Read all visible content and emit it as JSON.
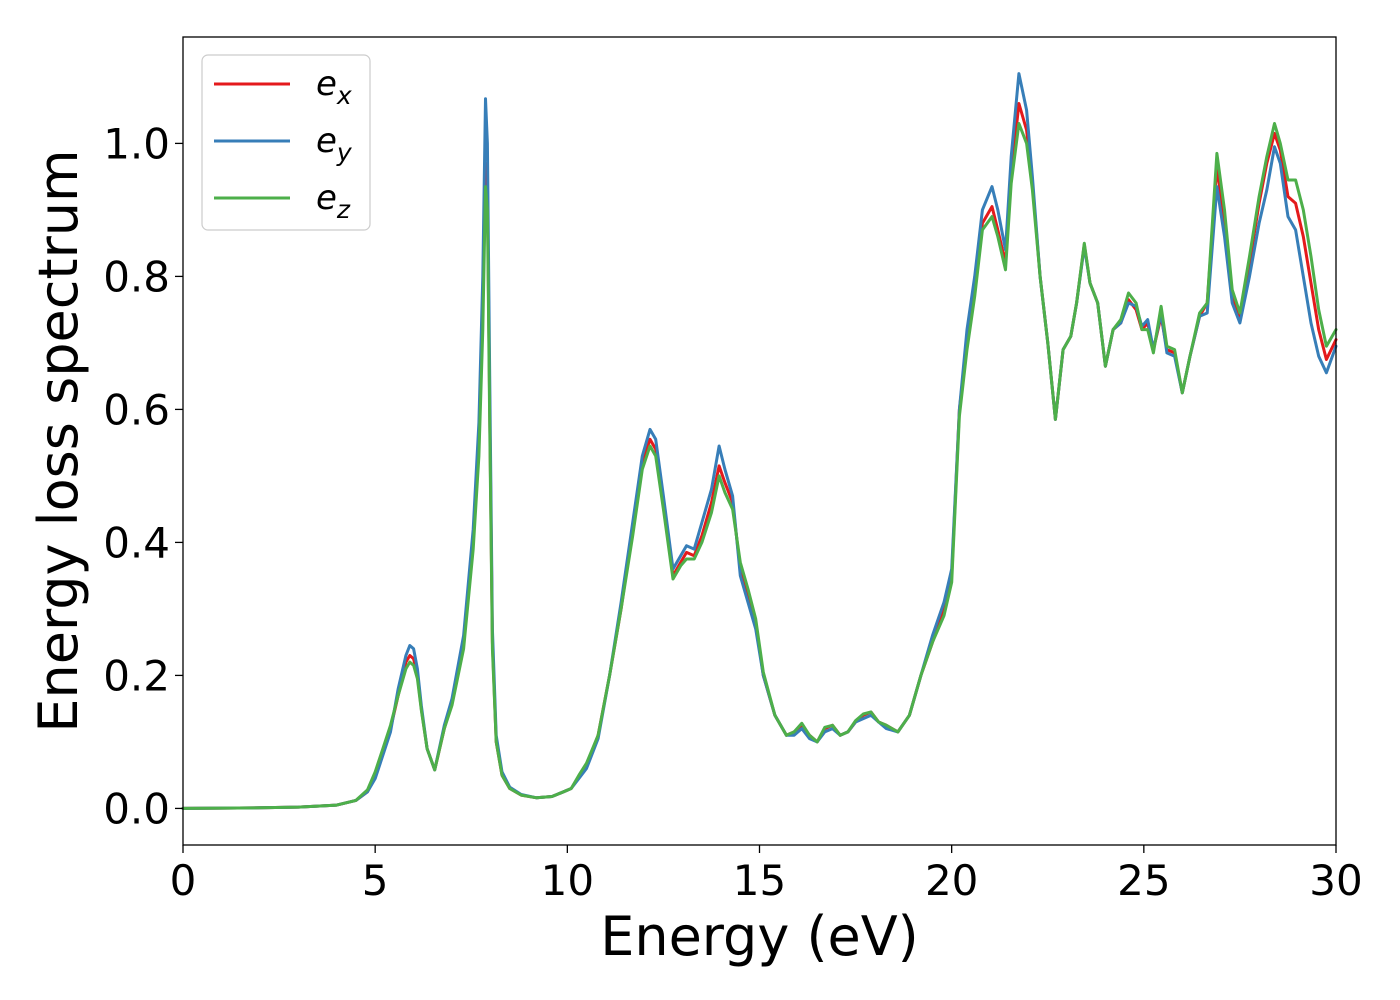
{
  "chart_data": {
    "type": "line",
    "title": "",
    "xlabel": "Energy (eV)",
    "ylabel": "Energy loss spectrum",
    "xlim": [
      0,
      30
    ],
    "ylim": [
      -0.055,
      1.16
    ],
    "xticks": [
      0,
      5,
      10,
      15,
      20,
      25,
      30
    ],
    "xtick_labels": [
      "0",
      "5",
      "10",
      "15",
      "20",
      "25",
      "30"
    ],
    "yticks": [
      0.0,
      0.2,
      0.4,
      0.6,
      0.8,
      1.0
    ],
    "ytick_labels": [
      "0.0",
      "0.2",
      "0.4",
      "0.6",
      "0.8",
      "1.0"
    ],
    "grid": false,
    "legend_position": "top-left",
    "x": [
      0,
      1,
      2,
      3,
      4,
      4.5,
      4.8,
      5,
      5.2,
      5.4,
      5.6,
      5.8,
      5.9,
      6.0,
      6.1,
      6.2,
      6.35,
      6.55,
      6.8,
      7.0,
      7.3,
      7.55,
      7.7,
      7.8,
      7.87,
      7.92,
      7.98,
      8.05,
      8.15,
      8.3,
      8.5,
      8.8,
      9.2,
      9.6,
      9.9,
      10.1,
      10.3,
      10.5,
      10.8,
      11.1,
      11.4,
      11.7,
      11.95,
      12.15,
      12.3,
      12.5,
      12.75,
      12.95,
      13.1,
      13.3,
      13.5,
      13.75,
      13.95,
      14.1,
      14.3,
      14.5,
      14.7,
      14.9,
      15.1,
      15.4,
      15.7,
      15.9,
      16.1,
      16.3,
      16.5,
      16.7,
      16.9,
      17.1,
      17.3,
      17.5,
      17.7,
      17.9,
      18.1,
      18.3,
      18.6,
      18.9,
      19.2,
      19.5,
      19.8,
      20.0,
      20.2,
      20.4,
      20.6,
      20.8,
      21.05,
      21.2,
      21.4,
      21.55,
      21.75,
      21.95,
      22.1,
      22.3,
      22.5,
      22.7,
      22.9,
      23.1,
      23.25,
      23.45,
      23.6,
      23.8,
      24.0,
      24.2,
      24.4,
      24.6,
      24.8,
      24.95,
      25.1,
      25.25,
      25.45,
      25.6,
      25.8,
      26.0,
      26.2,
      26.45,
      26.65,
      26.9,
      27.1,
      27.3,
      27.5,
      27.75,
      28.0,
      28.2,
      28.4,
      28.55,
      28.75,
      28.95,
      29.15,
      29.35,
      29.55,
      29.75,
      30.0
    ],
    "series": [
      {
        "name": "e_x",
        "label_base": "e",
        "label_sub": "x",
        "color": "#e41a1c",
        "values": [
          0,
          0.0005,
          0.001,
          0.002,
          0.005,
          0.012,
          0.025,
          0.05,
          0.085,
          0.12,
          0.17,
          0.22,
          0.23,
          0.225,
          0.2,
          0.15,
          0.09,
          0.058,
          0.12,
          0.16,
          0.25,
          0.4,
          0.55,
          0.75,
          0.97,
          0.93,
          0.6,
          0.25,
          0.1,
          0.05,
          0.03,
          0.02,
          0.016,
          0.018,
          0.025,
          0.03,
          0.048,
          0.065,
          0.11,
          0.2,
          0.3,
          0.42,
          0.52,
          0.555,
          0.54,
          0.46,
          0.35,
          0.37,
          0.385,
          0.38,
          0.41,
          0.46,
          0.515,
          0.49,
          0.46,
          0.36,
          0.32,
          0.28,
          0.2,
          0.14,
          0.11,
          0.115,
          0.125,
          0.11,
          0.1,
          0.12,
          0.125,
          0.11,
          0.115,
          0.13,
          0.14,
          0.145,
          0.13,
          0.125,
          0.115,
          0.14,
          0.2,
          0.25,
          0.3,
          0.35,
          0.6,
          0.7,
          0.78,
          0.88,
          0.905,
          0.87,
          0.82,
          0.95,
          1.06,
          1.02,
          0.94,
          0.8,
          0.7,
          0.585,
          0.69,
          0.71,
          0.76,
          0.848,
          0.79,
          0.76,
          0.665,
          0.72,
          0.73,
          0.765,
          0.75,
          0.72,
          0.73,
          0.69,
          0.74,
          0.69,
          0.685,
          0.625,
          0.68,
          0.74,
          0.76,
          0.965,
          0.88,
          0.77,
          0.735,
          0.82,
          0.91,
          0.97,
          1.015,
          0.99,
          0.92,
          0.91,
          0.86,
          0.79,
          0.72,
          0.675,
          0.705
        ]
      },
      {
        "name": "e_y",
        "label_base": "e",
        "label_sub": "y",
        "color": "#377eb8",
        "values": [
          0,
          0.0005,
          0.001,
          0.002,
          0.005,
          0.012,
          0.025,
          0.045,
          0.08,
          0.115,
          0.18,
          0.23,
          0.245,
          0.24,
          0.21,
          0.155,
          0.09,
          0.058,
          0.125,
          0.165,
          0.26,
          0.42,
          0.58,
          0.8,
          1.067,
          1.0,
          0.65,
          0.27,
          0.11,
          0.055,
          0.032,
          0.021,
          0.016,
          0.018,
          0.025,
          0.03,
          0.045,
          0.06,
          0.105,
          0.2,
          0.31,
          0.43,
          0.53,
          0.57,
          0.555,
          0.47,
          0.36,
          0.38,
          0.395,
          0.39,
          0.43,
          0.48,
          0.545,
          0.51,
          0.47,
          0.35,
          0.31,
          0.27,
          0.2,
          0.14,
          0.11,
          0.11,
          0.12,
          0.105,
          0.1,
          0.115,
          0.12,
          0.11,
          0.115,
          0.13,
          0.135,
          0.14,
          0.13,
          0.12,
          0.115,
          0.14,
          0.2,
          0.26,
          0.31,
          0.36,
          0.6,
          0.72,
          0.8,
          0.9,
          0.935,
          0.9,
          0.84,
          0.98,
          1.105,
          1.05,
          0.95,
          0.8,
          0.7,
          0.585,
          0.69,
          0.71,
          0.76,
          0.845,
          0.79,
          0.76,
          0.665,
          0.72,
          0.73,
          0.76,
          0.755,
          0.725,
          0.735,
          0.69,
          0.745,
          0.685,
          0.68,
          0.625,
          0.68,
          0.74,
          0.745,
          0.935,
          0.86,
          0.76,
          0.73,
          0.8,
          0.88,
          0.93,
          0.995,
          0.97,
          0.89,
          0.87,
          0.8,
          0.73,
          0.68,
          0.655,
          0.695
        ]
      },
      {
        "name": "e_z",
        "label_base": "e",
        "label_sub": "z",
        "color": "#4daf4a",
        "values": [
          0,
          0.0005,
          0.001,
          0.002,
          0.005,
          0.012,
          0.028,
          0.055,
          0.09,
          0.125,
          0.17,
          0.21,
          0.22,
          0.215,
          0.195,
          0.148,
          0.09,
          0.058,
          0.12,
          0.155,
          0.24,
          0.39,
          0.53,
          0.72,
          0.935,
          0.9,
          0.58,
          0.24,
          0.1,
          0.05,
          0.03,
          0.02,
          0.016,
          0.018,
          0.025,
          0.03,
          0.05,
          0.068,
          0.11,
          0.2,
          0.3,
          0.41,
          0.51,
          0.545,
          0.53,
          0.45,
          0.345,
          0.365,
          0.375,
          0.375,
          0.4,
          0.445,
          0.5,
          0.475,
          0.45,
          0.37,
          0.33,
          0.285,
          0.205,
          0.14,
          0.11,
          0.115,
          0.128,
          0.11,
          0.1,
          0.122,
          0.125,
          0.11,
          0.115,
          0.132,
          0.142,
          0.145,
          0.13,
          0.125,
          0.115,
          0.14,
          0.2,
          0.25,
          0.29,
          0.34,
          0.59,
          0.69,
          0.77,
          0.87,
          0.89,
          0.86,
          0.81,
          0.94,
          1.03,
          1.0,
          0.93,
          0.8,
          0.7,
          0.585,
          0.69,
          0.71,
          0.76,
          0.85,
          0.79,
          0.76,
          0.665,
          0.72,
          0.735,
          0.775,
          0.76,
          0.72,
          0.72,
          0.685,
          0.755,
          0.695,
          0.69,
          0.625,
          0.68,
          0.745,
          0.76,
          0.985,
          0.9,
          0.78,
          0.745,
          0.83,
          0.92,
          0.98,
          1.03,
          1.0,
          0.945,
          0.945,
          0.9,
          0.83,
          0.75,
          0.695,
          0.72
        ]
      }
    ]
  }
}
